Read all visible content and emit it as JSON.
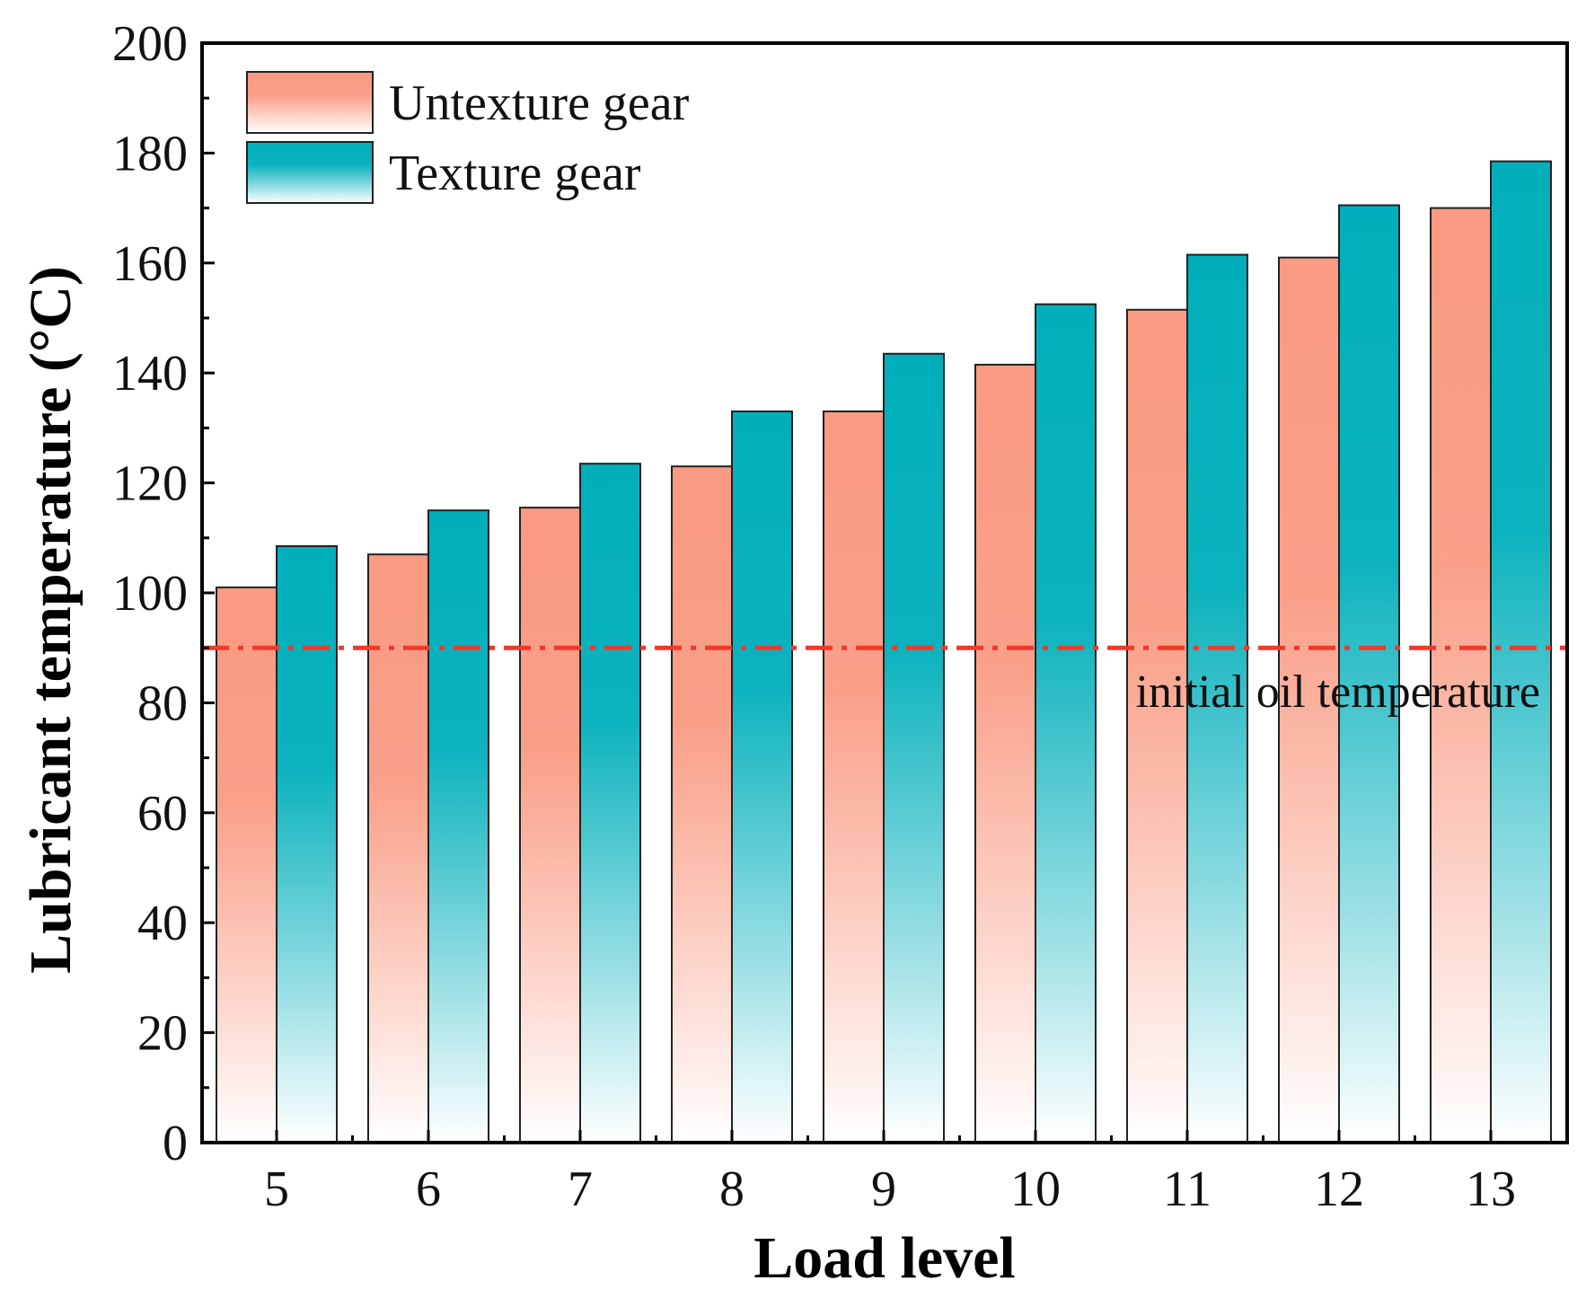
{
  "chart_data": {
    "type": "bar",
    "title": "",
    "xlabel": "Load level",
    "ylabel": "Lubricant temperature (°C)",
    "categories": [
      "5",
      "6",
      "7",
      "8",
      "9",
      "10",
      "11",
      "12",
      "13"
    ],
    "series": [
      {
        "name": "Untexture gear",
        "values": [
          101,
          107,
          115.5,
          123,
          133,
          141.5,
          151.5,
          161,
          170
        ],
        "color": "#f99a82",
        "color_end": "#ffffff"
      },
      {
        "name": "Texture gear",
        "values": [
          108.5,
          115,
          123.5,
          133,
          143.5,
          152.5,
          161.5,
          170.5,
          178.5
        ],
        "color": "#00afbb",
        "color_end": "#ffffff"
      }
    ],
    "ylim": [
      0,
      200
    ],
    "yticks": [
      0,
      20,
      40,
      60,
      80,
      100,
      120,
      140,
      160,
      180,
      200
    ],
    "reference_line": {
      "value": 90,
      "label": "initial oil temperature",
      "color": "#f03a2a",
      "style": "dash-dot"
    },
    "legend_position": "top-left",
    "grid": false
  }
}
